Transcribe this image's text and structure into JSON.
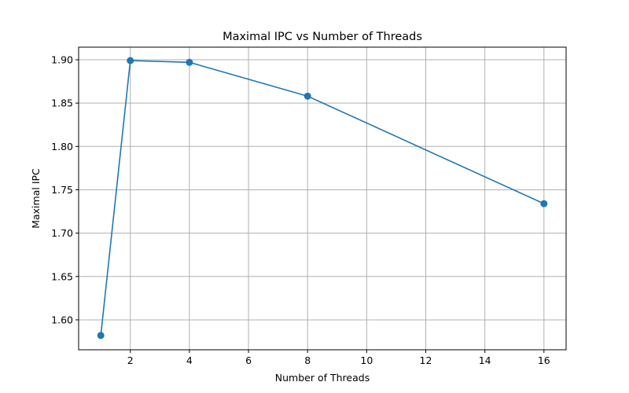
{
  "chart_data": {
    "type": "line",
    "title": "Maximal IPC vs Number of Threads",
    "xlabel": "Number of Threads",
    "ylabel": "Maximal IPC",
    "xlim": [
      0.25,
      16.75
    ],
    "ylim": [
      1.5655,
      1.9145
    ],
    "xticks": [
      2,
      4,
      6,
      8,
      10,
      12,
      14,
      16
    ],
    "yticks": [
      1.6,
      1.65,
      1.7,
      1.75,
      1.8,
      1.85,
      1.9
    ],
    "grid": true,
    "series": [
      {
        "color": "#1f77b4",
        "marker": "circle",
        "x": [
          1,
          2,
          4,
          8,
          16
        ],
        "y": [
          1.582,
          1.899,
          1.897,
          1.858,
          1.734
        ]
      }
    ]
  }
}
